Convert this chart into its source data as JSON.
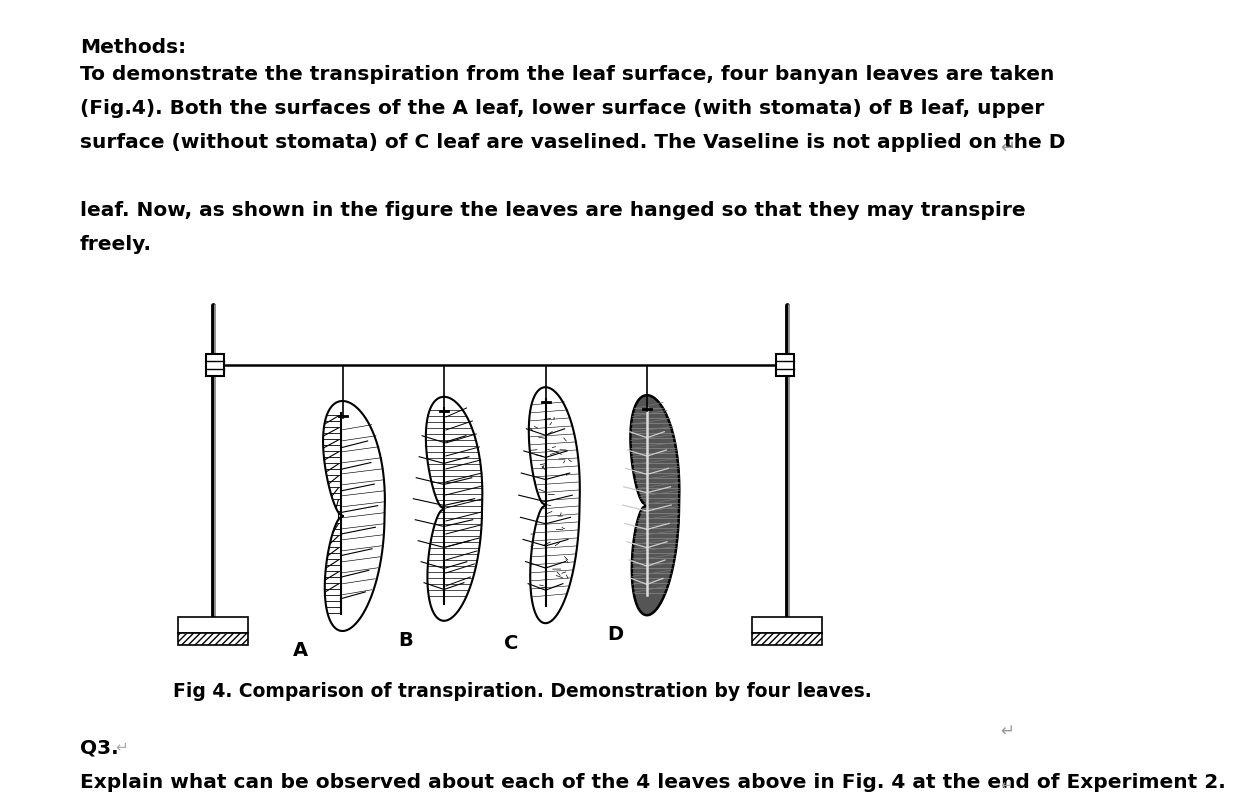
{
  "background_color": "#ffffff",
  "text_color": "#000000",
  "title_text": "Fig 4. Comparison of transpiration. Demonstration by four leaves.",
  "title_fontsize": 13.5,
  "methods_text": "Methods:",
  "line1": "To demonstrate the transpiration from the leaf surface, four banyan leaves are taken",
  "line2": "(Fig.4). Both the surfaces of the A leaf, lower surface (with stomata) of B leaf, upper",
  "line3": "surface (without stomata) of C leaf are vaselined. The Vaseline is not applied on the D",
  "line4": "leaf. Now, as shown in the figure the leaves are hanged so that they may transpire",
  "line5": "freely.",
  "q3_text": "Q3.",
  "q3_explain": "Explain what can be observed about each of the 4 leaves above in Fig. 4 at the end of Experiment 2.",
  "leaf_labels": [
    "A",
    "B",
    "C",
    "D"
  ],
  "font_size_body": 14.5
}
